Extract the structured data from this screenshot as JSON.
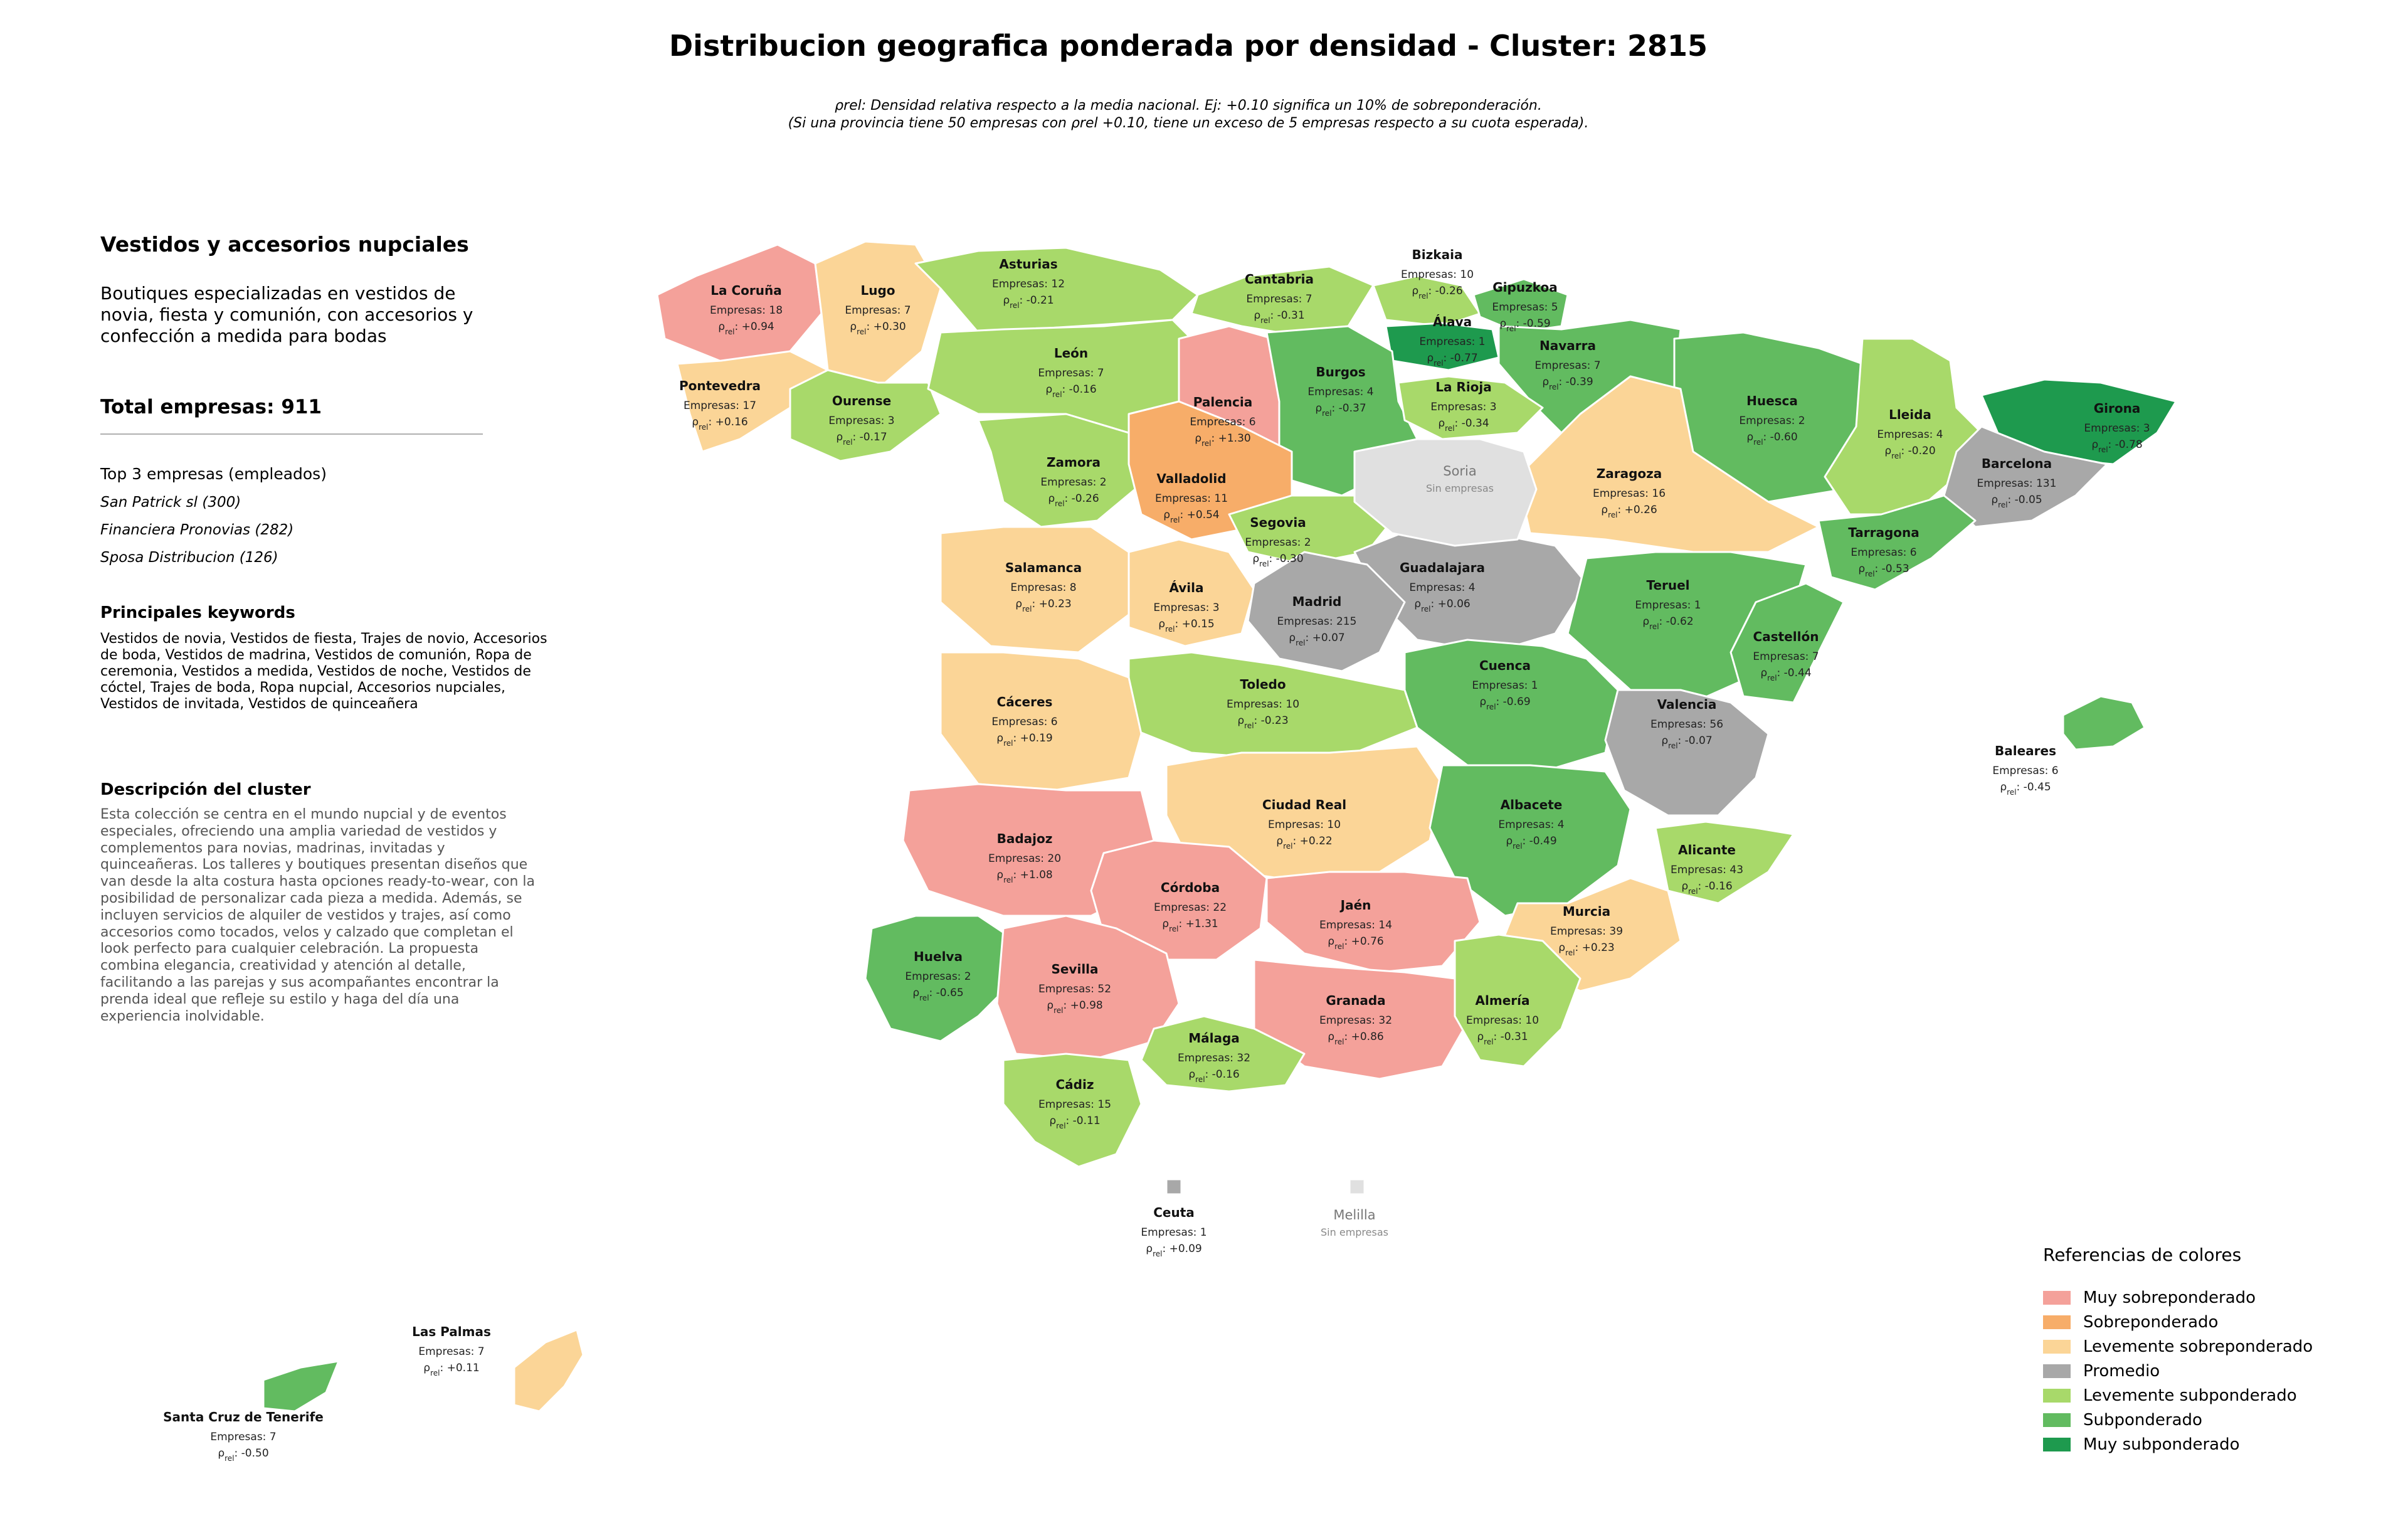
{
  "title": "Distribucion geografica ponderada por densidad - Cluster: 2815",
  "note_line1": "ρrel: Densidad relativa respecto a la media nacional. Ej: +0.10 significa un 10% de sobreponderación.",
  "note_line2": "(Si una provincia tiene 50 empresas con ρrel +0.10, tiene un exceso de 5 empresas respecto a su cuota esperada).",
  "sidebar": {
    "cluster_name": "Vestidos y accesorios nupciales",
    "cluster_desc": "Boutiques especializadas en vestidos de novia, fiesta y comunión, con accesorios y confección a medida para bodas",
    "total_label": "Total empresas: 911",
    "top_title": "Top 3 empresas (empleados)",
    "top_companies": [
      "San Patrick sl (300)",
      "Financiera Pronovias (282)",
      "Sposa Distribucion (126)"
    ],
    "keywords_title": "Principales keywords",
    "keywords": "Vestidos de novia, Vestidos de fiesta, Trajes de novio, Accesorios de boda, Vestidos de madrina, Vestidos de comunión, Ropa de ceremonia, Vestidos a medida, Vestidos de noche, Vestidos de cóctel, Trajes de boda, Ropa nupcial, Accesorios nupciales, Vestidos de invitada, Vestidos de quinceañera",
    "description_title": "Descripción del cluster",
    "description": "Esta colección se centra en el mundo nupcial y de eventos especiales, ofreciendo una amplia variedad de vestidos y complementos para novias, madrinas, invitadas y quinceañeras. Los talleres y boutiques presentan diseños que van desde la alta costura hasta opciones ready-to-wear, con la posibilidad de personalizar cada pieza a medida. Además, se incluyen servicios de alquiler de vestidos y trajes, así como accesorios como tocados, velos y calzado que completan el look perfecto para cualquier celebración. La propuesta combina elegancia, creatividad y atención al detalle, facilitando a las parejas y sus acompañantes encontrar la prenda ideal que refleje su estilo y haga del día una experiencia inolvidable."
  },
  "colors": {
    "muy_sobre": "#f4a19a",
    "sobre": "#f7ad69",
    "lev_sobre": "#fbd597",
    "promedio": "#a8a8a8",
    "lev_sub": "#a8d96a",
    "sub": "#62bb60",
    "muy_sub": "#1e9a4e",
    "sin_datos": "#e0e0e0"
  },
  "legend": {
    "title": "Referencias de colores",
    "items": [
      {
        "label": "Muy sobreponderado",
        "color": "#f4a19a"
      },
      {
        "label": "Sobreponderado",
        "color": "#f7ad69"
      },
      {
        "label": "Levemente sobreponderado",
        "color": "#fbd597"
      },
      {
        "label": "Promedio",
        "color": "#a8a8a8"
      },
      {
        "label": "Levemente subponderado",
        "color": "#a8d96a"
      },
      {
        "label": "Subponderado",
        "color": "#62bb60"
      },
      {
        "label": "Muy subponderado",
        "color": "#1e9a4e"
      }
    ]
  },
  "provinces": [
    {
      "name": "La Coruña",
      "empresas": "Empresas: 18",
      "rho": "+0.94"
    },
    {
      "name": "Lugo",
      "empresas": "Empresas: 7",
      "rho": "+0.30"
    },
    {
      "name": "Asturias",
      "empresas": "Empresas: 12",
      "rho": "-0.21"
    },
    {
      "name": "Cantabria",
      "empresas": "Empresas: 7",
      "rho": "-0.31"
    },
    {
      "name": "Bizkaia",
      "empresas": "Empresas: 10",
      "rho": "-0.26"
    },
    {
      "name": "Gipuzkoa",
      "empresas": "Empresas: 5",
      "rho": "-0.59"
    },
    {
      "name": "Álava",
      "empresas": "Empresas: 1",
      "rho": "-0.77"
    },
    {
      "name": "Navarra",
      "empresas": "Empresas: 7",
      "rho": "-0.39"
    },
    {
      "name": "Pontevedra",
      "empresas": "Empresas: 17",
      "rho": "+0.16"
    },
    {
      "name": "Ourense",
      "empresas": "Empresas: 3",
      "rho": "-0.17"
    },
    {
      "name": "León",
      "empresas": "Empresas: 7",
      "rho": "-0.16"
    },
    {
      "name": "Palencia",
      "empresas": "Empresas: 6",
      "rho": "+1.30"
    },
    {
      "name": "Burgos",
      "empresas": "Empresas: 4",
      "rho": "-0.37"
    },
    {
      "name": "La Rioja",
      "empresas": "Empresas: 3",
      "rho": "-0.34"
    },
    {
      "name": "Huesca",
      "empresas": "Empresas: 2",
      "rho": "-0.60"
    },
    {
      "name": "Lleida",
      "empresas": "Empresas: 4",
      "rho": "-0.20"
    },
    {
      "name": "Girona",
      "empresas": "Empresas: 3",
      "rho": "-0.78"
    },
    {
      "name": "Barcelona",
      "empresas": "Empresas: 131",
      "rho": "-0.05"
    },
    {
      "name": "Zamora",
      "empresas": "Empresas: 2",
      "rho": "-0.26"
    },
    {
      "name": "Valladolid",
      "empresas": "Empresas: 11",
      "rho": "+0.54"
    },
    {
      "name": "Zaragoza",
      "empresas": "Empresas: 16",
      "rho": "+0.26"
    },
    {
      "name": "Tarragona",
      "empresas": "Empresas: 6",
      "rho": "-0.53"
    },
    {
      "name": "Segovia",
      "empresas": "Empresas: 2",
      "rho": "-0.30"
    },
    {
      "name": "Salamanca",
      "empresas": "Empresas: 8",
      "rho": "+0.23"
    },
    {
      "name": "Guadalajara",
      "empresas": "Empresas: 4",
      "rho": "+0.06"
    },
    {
      "name": "Ávila",
      "empresas": "Empresas: 3",
      "rho": "+0.15"
    },
    {
      "name": "Madrid",
      "empresas": "Empresas: 215",
      "rho": "+0.07"
    },
    {
      "name": "Teruel",
      "empresas": "Empresas: 1",
      "rho": "-0.62"
    },
    {
      "name": "Castellón",
      "empresas": "Empresas: 7",
      "rho": "-0.44"
    },
    {
      "name": "Cuenca",
      "empresas": "Empresas: 1",
      "rho": "-0.69"
    },
    {
      "name": "Toledo",
      "empresas": "Empresas: 10",
      "rho": "-0.23"
    },
    {
      "name": "Cáceres",
      "empresas": "Empresas: 6",
      "rho": "+0.19"
    },
    {
      "name": "Valencia",
      "empresas": "Empresas: 56",
      "rho": "-0.07"
    },
    {
      "name": "Baleares",
      "empresas": "Empresas: 6",
      "rho": "-0.45"
    },
    {
      "name": "Ciudad Real",
      "empresas": "Empresas: 10",
      "rho": "+0.22"
    },
    {
      "name": "Albacete",
      "empresas": "Empresas: 4",
      "rho": "-0.49"
    },
    {
      "name": "Badajoz",
      "empresas": "Empresas: 20",
      "rho": "+1.08"
    },
    {
      "name": "Alicante",
      "empresas": "Empresas: 43",
      "rho": "-0.16"
    },
    {
      "name": "Córdoba",
      "empresas": "Empresas: 22",
      "rho": "+1.31"
    },
    {
      "name": "Jaén",
      "empresas": "Empresas: 14",
      "rho": "+0.76"
    },
    {
      "name": "Murcia",
      "empresas": "Empresas: 39",
      "rho": "+0.23"
    },
    {
      "name": "Huelva",
      "empresas": "Empresas: 2",
      "rho": "-0.65"
    },
    {
      "name": "Sevilla",
      "empresas": "Empresas: 52",
      "rho": "+0.98"
    },
    {
      "name": "Granada",
      "empresas": "Empresas: 32",
      "rho": "+0.86"
    },
    {
      "name": "Almería",
      "empresas": "Empresas: 10",
      "rho": "-0.31"
    },
    {
      "name": "Málaga",
      "empresas": "Empresas: 32",
      "rho": "-0.16"
    },
    {
      "name": "Cádiz",
      "empresas": "Empresas: 15",
      "rho": "-0.11"
    },
    {
      "name": "Ceuta",
      "empresas": "Empresas: 1",
      "rho": "+0.09"
    },
    {
      "name": "Las Palmas",
      "empresas": "Empresas: 7",
      "rho": "+0.11"
    },
    {
      "name": "Santa Cruz de Tenerife",
      "empresas": "Empresas: 7",
      "rho": "-0.50"
    }
  ],
  "no_data": [
    {
      "name": "Soria",
      "sub": "Sin empresas"
    },
    {
      "name": "Melilla",
      "sub": "Sin empresas"
    }
  ]
}
